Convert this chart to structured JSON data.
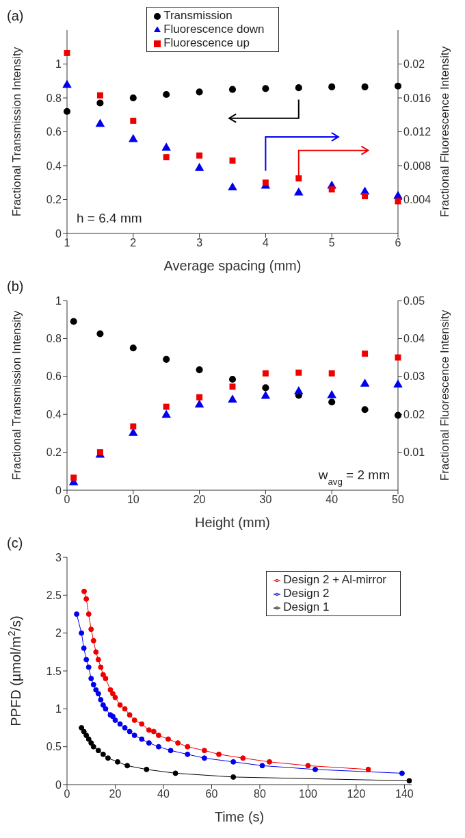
{
  "chart_data": [
    {
      "type": "scatter",
      "title": "(a)",
      "xlabel": "Average spacing (mm)",
      "ylabel": "Fractional Transmission Intensity",
      "y2label": "Fractional Fluorescence Intensity",
      "x": [
        1,
        1.5,
        2,
        2.5,
        3,
        3.5,
        4,
        4.5,
        5,
        5.5,
        6
      ],
      "xlim": [
        1,
        6
      ],
      "xticks": [
        1,
        2,
        3,
        4,
        5,
        6
      ],
      "ylim": [
        0,
        1.2
      ],
      "yticks": [
        0,
        0.2,
        0.4,
        0.6,
        0.8,
        1
      ],
      "y2lim": [
        0,
        0.024
      ],
      "y2ticks": [
        0.004,
        0.008,
        0.012,
        0.016,
        0.02
      ],
      "legend": "top",
      "annotations": [
        "h = 6.4 mm"
      ],
      "series": [
        {
          "name": "Transmission",
          "color": "#000000",
          "marker": "circle",
          "values": [
            0.72,
            0.77,
            0.8,
            0.82,
            0.835,
            0.85,
            0.855,
            0.86,
            0.865,
            0.865,
            0.87
          ]
        },
        {
          "name": "Fluorescence down",
          "color": "#0000ee",
          "marker": "triangle",
          "axis": "y2",
          "values": [
            0.0175,
            0.0129,
            0.0111,
            0.0101,
            0.0077,
            0.0054,
            0.0056,
            0.0048,
            0.0056,
            0.0049,
            0.0044
          ]
        },
        {
          "name": "Fluorescence up",
          "color": "#ee0000",
          "marker": "square",
          "axis": "y2",
          "values": [
            0.0213,
            0.0163,
            0.0133,
            0.009,
            0.0092,
            0.0086,
            0.006,
            0.0065,
            0.0052,
            0.0044,
            0.0038
          ]
        }
      ]
    },
    {
      "type": "scatter",
      "title": "(b)",
      "xlabel": "Height (mm)",
      "ylabel": "Fractional Transmission Intensity",
      "y2label": "Fractional Fluorescence Intensity",
      "x": [
        1,
        5,
        10,
        15,
        20,
        25,
        30,
        35,
        40,
        45,
        50
      ],
      "xlim": [
        0,
        50
      ],
      "xticks": [
        0,
        10,
        20,
        30,
        40,
        50
      ],
      "ylim": [
        0,
        1
      ],
      "yticks": [
        0,
        0.2,
        0.4,
        0.6,
        0.8,
        1
      ],
      "y2lim": [
        0,
        0.05
      ],
      "y2ticks": [
        0.01,
        0.02,
        0.03,
        0.04,
        0.05
      ],
      "annotations": [
        "w$_{avg}$ = 2 mm"
      ],
      "series": [
        {
          "color": "#000000",
          "marker": "circle",
          "values": [
            0.89,
            0.825,
            0.75,
            0.69,
            0.635,
            0.585,
            0.54,
            0.5,
            0.465,
            0.425,
            0.395
          ]
        },
        {
          "color": "#0000ee",
          "marker": "triangle",
          "axis": "y2",
          "values": [
            0.002,
            0.0093,
            0.015,
            0.0198,
            0.0225,
            0.0238,
            0.0248,
            0.026,
            0.025,
            0.028,
            0.0278
          ]
        },
        {
          "color": "#ee0000",
          "marker": "square",
          "axis": "y2",
          "values": [
            0.0033,
            0.01,
            0.0168,
            0.022,
            0.0245,
            0.0273,
            0.0308,
            0.031,
            0.0308,
            0.036,
            0.035
          ]
        }
      ]
    },
    {
      "type": "line",
      "title": "(c)",
      "xlabel": "Time (s)",
      "ylabel": "PPFD (µmol/m$^{2}$/s)",
      "xlim": [
        0,
        143
      ],
      "xticks": [
        0,
        20,
        40,
        60,
        80,
        100,
        120,
        140
      ],
      "ylim": [
        0,
        3
      ],
      "yticks": [
        0,
        0.5,
        1,
        1.5,
        2,
        2.5,
        3
      ],
      "marker": "circle",
      "line_style": "solid",
      "legend": "top right",
      "series": [
        {
          "name": "Design 2 + Al-mirror",
          "color": "#ee0000",
          "x": [
            7.1,
            8,
            9,
            10,
            11,
            12,
            13,
            14,
            15,
            16,
            18,
            19,
            20,
            22,
            24,
            26,
            28,
            31,
            34,
            36,
            38,
            42,
            46,
            50,
            57,
            63,
            73,
            84,
            100,
            125
          ],
          "values": [
            2.55,
            2.45,
            2.25,
            2.05,
            1.9,
            1.75,
            1.65,
            1.55,
            1.45,
            1.4,
            1.25,
            1.2,
            1.15,
            1.05,
            1.0,
            0.92,
            0.85,
            0.8,
            0.72,
            0.7,
            0.65,
            0.6,
            0.55,
            0.5,
            0.45,
            0.4,
            0.35,
            0.3,
            0.25,
            0.2
          ]
        },
        {
          "name": "Design 2",
          "color": "#0000ee",
          "x": [
            4,
            6,
            7,
            8,
            9,
            10,
            11,
            12,
            13,
            14,
            15,
            16,
            18,
            19,
            20,
            22,
            24,
            26,
            28,
            31,
            34,
            38,
            43,
            50,
            57,
            69,
            81,
            103,
            139
          ],
          "values": [
            2.25,
            2.0,
            1.8,
            1.65,
            1.55,
            1.4,
            1.32,
            1.25,
            1.2,
            1.12,
            1.05,
            1.0,
            0.92,
            0.9,
            0.85,
            0.8,
            0.75,
            0.7,
            0.65,
            0.6,
            0.55,
            0.5,
            0.45,
            0.4,
            0.35,
            0.3,
            0.25,
            0.2,
            0.15
          ]
        },
        {
          "name": "Design 1",
          "color": "#000000",
          "x": [
            6,
            7,
            8,
            9,
            10,
            11,
            13,
            15,
            17,
            21,
            25,
            33,
            45,
            69,
            142
          ],
          "values": [
            0.75,
            0.7,
            0.65,
            0.6,
            0.55,
            0.5,
            0.45,
            0.4,
            0.35,
            0.3,
            0.25,
            0.2,
            0.15,
            0.1,
            0.05
          ]
        }
      ]
    }
  ]
}
